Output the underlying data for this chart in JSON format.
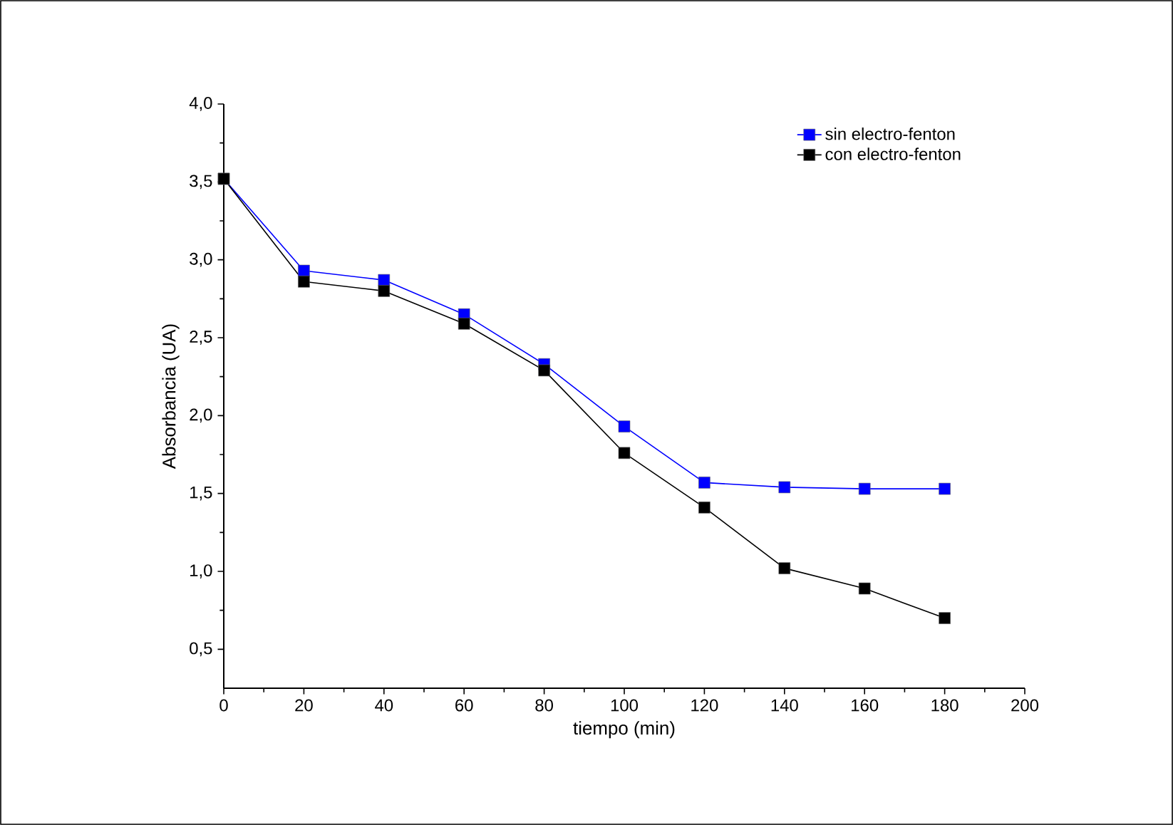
{
  "chart_data": {
    "type": "line",
    "xlabel": "tiempo (min)",
    "ylabel": "Absorbancia (UA)",
    "x": [
      0,
      20,
      40,
      60,
      80,
      100,
      120,
      140,
      160,
      180
    ],
    "series": [
      {
        "name": "sin electro-fenton",
        "color": "#0000ff",
        "values": [
          3.52,
          2.93,
          2.87,
          2.65,
          2.33,
          1.93,
          1.57,
          1.54,
          1.53,
          1.53
        ]
      },
      {
        "name": "con electro-fenton",
        "color": "#000000",
        "values": [
          3.52,
          2.86,
          2.8,
          2.59,
          2.29,
          1.76,
          1.41,
          1.02,
          0.89,
          0.7
        ]
      }
    ],
    "xlim": [
      0,
      200
    ],
    "ylim": [
      0.25,
      4.0
    ],
    "xticks": [
      0,
      20,
      40,
      60,
      80,
      100,
      120,
      140,
      160,
      180,
      200
    ],
    "yticks": [
      {
        "value": 0.5,
        "label": "0,5"
      },
      {
        "value": 1.0,
        "label": "1,0"
      },
      {
        "value": 1.5,
        "label": "1,5"
      },
      {
        "value": 2.0,
        "label": "2,0"
      },
      {
        "value": 2.5,
        "label": "2,5"
      },
      {
        "value": 3.0,
        "label": "3,0"
      },
      {
        "value": 3.5,
        "label": "3,5"
      },
      {
        "value": 4.0,
        "label": "4,0"
      }
    ],
    "grid": false,
    "legend": "top right",
    "marker": "square",
    "line_style": "solid"
  }
}
